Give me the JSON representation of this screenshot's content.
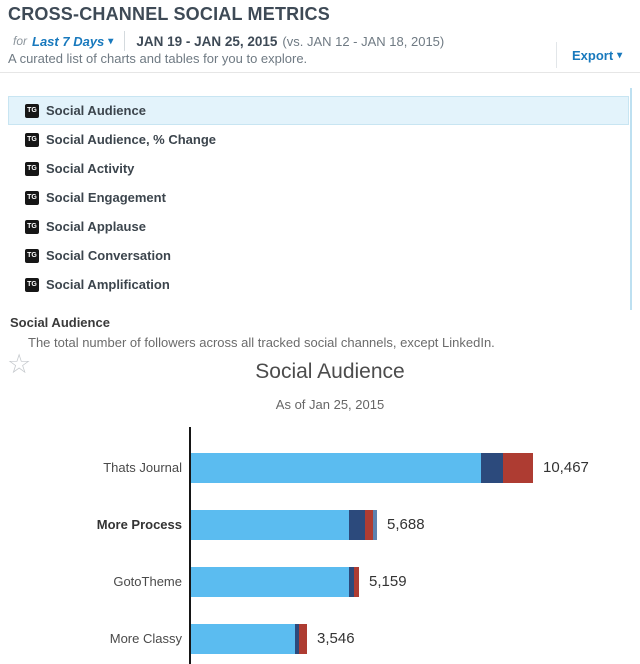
{
  "header": {
    "title": "CROSS-CHANNEL SOCIAL METRICS",
    "period_prefix": "for",
    "period_selector": "Last 7 Days",
    "date_range": "JAN 19 - JAN 25, 2015",
    "date_range_compare": "(vs. JAN 12 - JAN 18, 2015)",
    "subtitle": "A curated list of charts and tables for you to explore.",
    "export_label": "Export",
    "accent_color": "#1879bd"
  },
  "metrics_list": {
    "icon": "tg-logo-icon",
    "icon_text": "TG",
    "items": [
      {
        "label": "Social Audience",
        "selected": true
      },
      {
        "label": "Social Audience, % Change",
        "selected": false
      },
      {
        "label": "Social Activity",
        "selected": false
      },
      {
        "label": "Social Engagement",
        "selected": false
      },
      {
        "label": "Social Applause",
        "selected": false
      },
      {
        "label": "Social Conversation",
        "selected": false
      },
      {
        "label": "Social Amplification",
        "selected": false
      }
    ]
  },
  "detail": {
    "heading": "Social Audience",
    "description": "The total number of followers across all tracked social channels, except LinkedIn.",
    "favorite_icon": "star-outline-icon",
    "favorite_glyph": "☆"
  },
  "chart_data": {
    "type": "bar",
    "orientation": "horizontal",
    "stacked": true,
    "title": "Social Audience",
    "subtitle": "As of Jan 25, 2015",
    "legend": "none",
    "grid": false,
    "xlim": [
      0,
      10467
    ],
    "categories": [
      "Thats Journal",
      "More Process",
      "GotoTheme",
      "More Classy"
    ],
    "totals": [
      10467,
      5688,
      5159,
      3546
    ],
    "total_labels": [
      "10,467",
      "5,688",
      "5,159",
      "3,546"
    ],
    "highlighted_category": "More Process",
    "series": [
      {
        "name": "segment-light-blue",
        "color": "#5bbcf0",
        "values": [
          8874,
          4822,
          4850,
          3179
        ]
      },
      {
        "name": "segment-navy",
        "color": "#2c4a7c",
        "values": [
          673,
          494,
          155,
          122
        ]
      },
      {
        "name": "segment-red",
        "color": "#ae3c32",
        "values": [
          920,
          248,
          154,
          245
        ]
      },
      {
        "name": "segment-steel-blue",
        "color": "#5b82b0",
        "values": [
          0,
          124,
          0,
          0
        ]
      }
    ]
  }
}
